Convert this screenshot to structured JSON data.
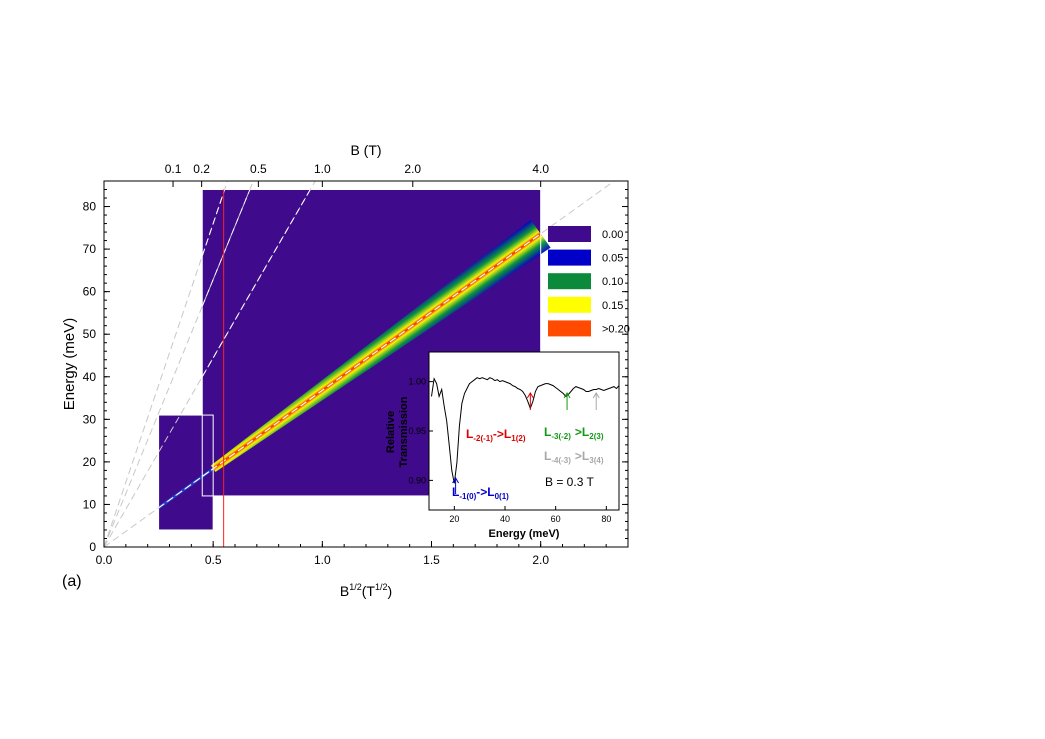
{
  "chart_data": [
    {
      "type": "heatmap",
      "panel_label": "(a)",
      "xlabel": "B",
      "xlabel_sup": "1/2",
      "xlabel_units": "(T",
      "xlabel_units_sup": "1/2",
      "xlabel_close": ")",
      "ylabel": "Energy (meV)",
      "top_xlabel": "B (T)",
      "xlim": [
        0,
        2.4
      ],
      "ylim": [
        0,
        86
      ],
      "x_ticks": [
        {
          "v": 0,
          "label": "0.0"
        },
        {
          "v": 0.5,
          "label": "0.5"
        },
        {
          "v": 1.0,
          "label": "1.0"
        },
        {
          "v": 1.5,
          "label": "1.5"
        },
        {
          "v": 2.0,
          "label": "2.0"
        }
      ],
      "y_ticks": [
        {
          "v": 0,
          "label": "0"
        },
        {
          "v": 10,
          "label": "10"
        },
        {
          "v": 20,
          "label": "20"
        },
        {
          "v": 30,
          "label": "30"
        },
        {
          "v": 40,
          "label": "40"
        },
        {
          "v": 50,
          "label": "50"
        },
        {
          "v": 60,
          "label": "60"
        },
        {
          "v": 70,
          "label": "70"
        },
        {
          "v": 80,
          "label": "80"
        }
      ],
      "top_ticks": [
        {
          "B": 0.1,
          "label": "0.1"
        },
        {
          "B": 0.2,
          "label": "0.2"
        },
        {
          "B": 0.5,
          "label": "0.5"
        },
        {
          "B": 1.0,
          "label": "1.0"
        },
        {
          "B": 2.0,
          "label": "2.0"
        },
        {
          "B": 4.0,
          "label": "4.0"
        }
      ],
      "colorbar": [
        {
          "label": "0.00",
          "color": "#3f0a8c"
        },
        {
          "label": "0.05",
          "color": "#0000c8"
        },
        {
          "label": "0.10",
          "color": "#0a8a3a"
        },
        {
          "label": "0.15",
          "color": "#ffff00"
        },
        {
          "label": ">0.20",
          "color": "#ff4a00"
        }
      ],
      "data_regions": [
        {
          "x": [
            0.25,
            0.5
          ],
          "y": [
            4,
            31
          ]
        },
        {
          "x": [
            0.45,
            2.0
          ],
          "y": [
            12,
            84
          ]
        }
      ],
      "main_transition_slope_meV_per_sqrtT": 36.8,
      "guide_line_slopes": [
        36.8,
        88.9,
        125.7,
        152.0
      ],
      "marker_x": 0.548
    },
    {
      "type": "line",
      "xlabel": "Energy (meV)",
      "ylabel": "Relative Transmission",
      "xlim": [
        10,
        85
      ],
      "ylim": [
        0.87,
        1.03
      ],
      "x_ticks": [
        20,
        40,
        60,
        80
      ],
      "y_ticks": [
        {
          "v": 0.9,
          "label": "0.90"
        },
        {
          "v": 0.95,
          "label": "0.95"
        },
        {
          "v": 1.0,
          "label": "1.00"
        }
      ],
      "field_label": "B = 0.3 T",
      "series": [
        {
          "x": [
            11,
            12,
            13,
            14,
            15,
            16,
            17,
            18,
            19,
            20,
            21,
            22,
            23,
            24,
            25,
            26,
            27,
            28,
            29,
            30,
            31,
            32,
            33,
            34,
            35,
            36,
            37,
            38,
            39,
            40,
            41,
            42,
            43,
            44,
            45,
            46,
            47,
            48,
            49,
            50,
            51,
            52,
            53,
            54,
            55,
            56,
            57,
            58,
            59,
            60,
            61,
            62,
            63,
            64,
            65,
            66,
            67,
            68,
            69,
            70,
            71,
            72,
            73,
            74,
            75,
            76,
            77,
            78,
            79,
            80,
            81,
            82,
            83,
            84,
            85
          ],
          "y": [
            0.985,
            1.003,
            0.998,
            0.985,
            0.992,
            0.975,
            0.96,
            0.935,
            0.91,
            0.897,
            0.918,
            0.955,
            0.978,
            0.988,
            0.993,
            0.998,
            1.0,
            1.002,
            1.004,
            1.003,
            1.004,
            1.003,
            1.002,
            1.004,
            1.003,
            1.001,
            1.002,
            1.0,
            1.001,
            1.0,
            0.999,
            0.998,
            0.996,
            0.995,
            0.993,
            0.992,
            0.99,
            0.986,
            0.98,
            0.973,
            0.98,
            0.99,
            0.995,
            0.996,
            0.997,
            0.998,
            0.998,
            0.997,
            0.996,
            0.994,
            0.992,
            0.99,
            0.988,
            0.985,
            0.987,
            0.99,
            0.993,
            0.995,
            0.994,
            0.993,
            0.992,
            0.99,
            0.99,
            0.991,
            0.992,
            0.992,
            0.993,
            0.992,
            0.991,
            0.992,
            0.993,
            0.994,
            0.995,
            0.993,
            0.996
          ]
        }
      ],
      "annotations": [
        {
          "x": 20.5,
          "color": "#0000cc",
          "base": "L",
          "sub1": "-1(0)",
          "arrow": "->",
          "base2": "L",
          "sub2": "0(1)"
        },
        {
          "x": 50,
          "color": "#dd0000",
          "base": "L",
          "sub1": "-2(-1)",
          "arrow": "->",
          "base2": "L",
          "sub2": "1(2)"
        },
        {
          "x": 64.5,
          "color": "#119911",
          "base": "L",
          "sub1": "-3(-2)",
          "arrow": ">",
          "base2": "L",
          "sub2": "2(3)"
        },
        {
          "x": 76,
          "color": "#a8a8a8",
          "base": "L",
          "sub1": "-4(-3)",
          "arrow": ">",
          "base2": "L",
          "sub2": "3(4)"
        }
      ]
    }
  ]
}
